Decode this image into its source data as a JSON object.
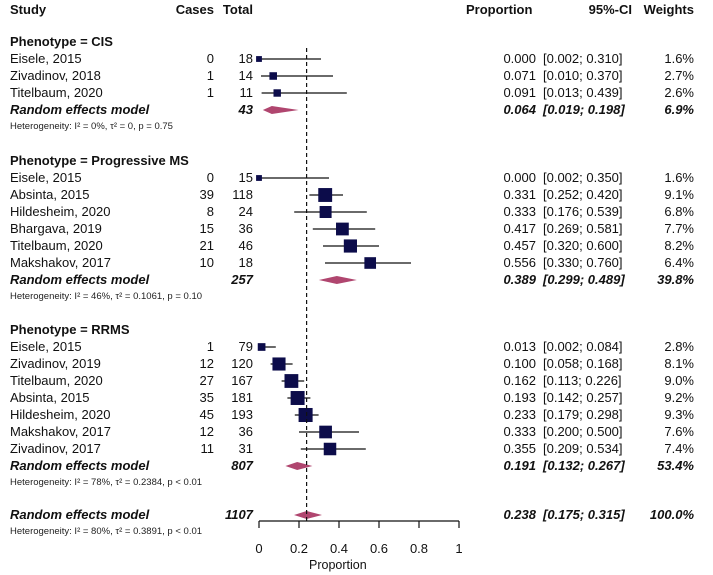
{
  "chart_data": {
    "type": "forest",
    "headers": {
      "study": "Study",
      "cases": "Cases",
      "total": "Total",
      "proportion": "Proportion",
      "ci": "95%-CI",
      "weights": "Weights"
    },
    "xlabel": "Proportion",
    "xlim": [
      0,
      1
    ],
    "xticks": [
      "0",
      "0.2",
      "0.4",
      "0.6",
      "0.8",
      "1"
    ],
    "reference_line": 0.238,
    "colors": {
      "study_square": "#0c0c4a",
      "diamond": "#b0466f",
      "line": "#111111"
    },
    "subgroups": [
      {
        "title": "Phenotype = CIS",
        "studies": [
          {
            "study": "Eisele, 2015",
            "cases": 0,
            "total": 18,
            "proportion": 0.0,
            "ci": [
              0.002,
              0.31
            ],
            "weight": 1.6
          },
          {
            "study": "Zivadinov, 2018",
            "cases": 1,
            "total": 14,
            "proportion": 0.071,
            "ci": [
              0.01,
              0.37
            ],
            "weight": 2.7
          },
          {
            "study": "Titelbaum, 2020",
            "cases": 1,
            "total": 11,
            "proportion": 0.091,
            "ci": [
              0.013,
              0.439
            ],
            "weight": 2.6
          }
        ],
        "model": {
          "label": "Random effects model",
          "total": 43,
          "proportion": 0.064,
          "ci": [
            0.019,
            0.198
          ],
          "weight": 6.9
        },
        "heterogeneity": "Heterogeneity: I² = 0%, τ² = 0, p = 0.75"
      },
      {
        "title": "Phenotype = Progressive MS",
        "studies": [
          {
            "study": "Eisele, 2015",
            "cases": 0,
            "total": 15,
            "proportion": 0.0,
            "ci": [
              0.002,
              0.35
            ],
            "weight": 1.6
          },
          {
            "study": "Absinta, 2015",
            "cases": 39,
            "total": 118,
            "proportion": 0.331,
            "ci": [
              0.252,
              0.42
            ],
            "weight": 9.1
          },
          {
            "study": "Hildesheim, 2020",
            "cases": 8,
            "total": 24,
            "proportion": 0.333,
            "ci": [
              0.176,
              0.539
            ],
            "weight": 6.8
          },
          {
            "study": "Bhargava, 2019",
            "cases": 15,
            "total": 36,
            "proportion": 0.417,
            "ci": [
              0.269,
              0.581
            ],
            "weight": 7.7
          },
          {
            "study": "Titelbaum, 2020",
            "cases": 21,
            "total": 46,
            "proportion": 0.457,
            "ci": [
              0.32,
              0.6
            ],
            "weight": 8.2
          },
          {
            "study": "Makshakov, 2017",
            "cases": 10,
            "total": 18,
            "proportion": 0.556,
            "ci": [
              0.33,
              0.76
            ],
            "weight": 6.4
          }
        ],
        "model": {
          "label": "Random effects model",
          "total": 257,
          "proportion": 0.389,
          "ci": [
            0.299,
            0.489
          ],
          "weight": 39.8
        },
        "heterogeneity": "Heterogeneity: I² = 46%, τ² = 0.1061, p = 0.10"
      },
      {
        "title": "Phenotype = RRMS",
        "studies": [
          {
            "study": "Eisele, 2015",
            "cases": 1,
            "total": 79,
            "proportion": 0.013,
            "ci": [
              0.002,
              0.084
            ],
            "weight": 2.8
          },
          {
            "study": "Zivadinov, 2019",
            "cases": 12,
            "total": 120,
            "proportion": 0.1,
            "ci": [
              0.058,
              0.168
            ],
            "weight": 8.1
          },
          {
            "study": "Titelbaum, 2020",
            "cases": 27,
            "total": 167,
            "proportion": 0.162,
            "ci": [
              0.113,
              0.226
            ],
            "weight": 9.0
          },
          {
            "study": "Absinta, 2015",
            "cases": 35,
            "total": 181,
            "proportion": 0.193,
            "ci": [
              0.142,
              0.257
            ],
            "weight": 9.2
          },
          {
            "study": "Hildesheim, 2020",
            "cases": 45,
            "total": 193,
            "proportion": 0.233,
            "ci": [
              0.179,
              0.298
            ],
            "weight": 9.3
          },
          {
            "study": "Makshakov, 2017",
            "cases": 12,
            "total": 36,
            "proportion": 0.333,
            "ci": [
              0.2,
              0.5
            ],
            "weight": 7.6
          },
          {
            "study": "Zivadinov, 2017",
            "cases": 11,
            "total": 31,
            "proportion": 0.355,
            "ci": [
              0.209,
              0.534
            ],
            "weight": 7.4
          }
        ],
        "model": {
          "label": "Random effects model",
          "total": 807,
          "proportion": 0.191,
          "ci": [
            0.132,
            0.267
          ],
          "weight": 53.4
        },
        "heterogeneity": "Heterogeneity: I² = 78%, τ² = 0.2384, p < 0.01"
      }
    ],
    "overall": {
      "label": "Random effects model",
      "total": 1107,
      "proportion": 0.238,
      "ci": [
        0.175,
        0.315
      ],
      "weight": 100.0,
      "heterogeneity": "Heterogeneity: I² = 80%, τ² = 0.3891, p < 0.01"
    }
  }
}
